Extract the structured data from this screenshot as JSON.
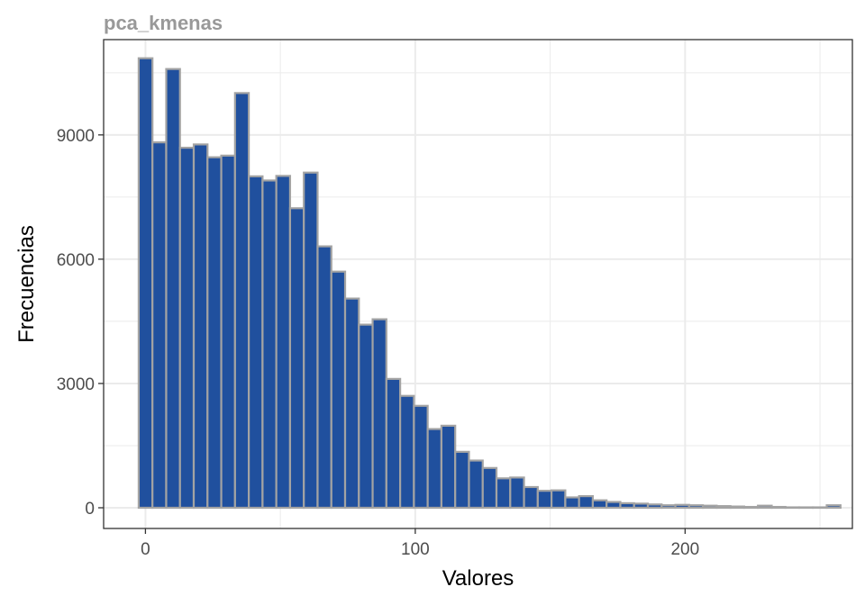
{
  "chart_data": {
    "type": "bar",
    "title": "pca_kmenas",
    "xlabel": "Valores",
    "ylabel": "Frecuencias",
    "x_ticks": [
      0,
      100,
      200
    ],
    "y_ticks": [
      0,
      3000,
      6000,
      9000
    ],
    "xlim": [
      -15.5,
      262
    ],
    "ylim": [
      -500,
      11300
    ],
    "grid": true,
    "bin_width": 5.1,
    "bins_start": [
      -2.5,
      2.6,
      7.7,
      12.8,
      17.9,
      23,
      28.1,
      33.2,
      38.3,
      43.4,
      48.5,
      53.6,
      58.7,
      63.8,
      68.9,
      74,
      79.1,
      84.2,
      89.3,
      94.4,
      99.5,
      104.6,
      109.7,
      114.8,
      119.9,
      125,
      130.1,
      135.2,
      140.3,
      145.4,
      150.5,
      155.6,
      160.7,
      165.8,
      170.9,
      176,
      181.1,
      186.2,
      191.3,
      196.4,
      201.5,
      206.6,
      211.7,
      216.8,
      221.9,
      227,
      232.1,
      237.2,
      242.3,
      247.4,
      252.5
    ],
    "values": [
      10850,
      8820,
      10590,
      8690,
      8770,
      8460,
      8500,
      10010,
      8000,
      7900,
      8010,
      7230,
      8090,
      6310,
      5700,
      5050,
      4420,
      4550,
      3110,
      2700,
      2460,
      1900,
      1980,
      1350,
      1140,
      960,
      710,
      730,
      500,
      410,
      420,
      250,
      280,
      180,
      140,
      110,
      100,
      80,
      60,
      70,
      60,
      50,
      40,
      30,
      20,
      50,
      20,
      10,
      10,
      10,
      60
    ],
    "colors": {
      "bar_fill": "#20509e",
      "bar_stroke": "#a3a3a3",
      "grid": "#ebebeb",
      "panel_border": "#333333",
      "title": "#999999",
      "tick_text": "#4d4d4d"
    }
  }
}
